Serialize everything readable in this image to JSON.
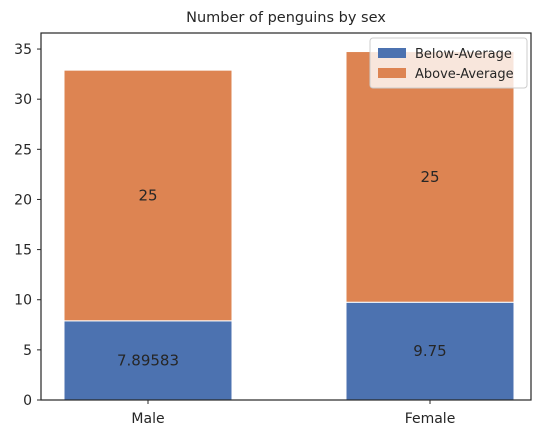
{
  "chart_data": {
    "type": "bar",
    "stacked": true,
    "title": "Number of penguins by sex",
    "xlabel": "",
    "ylabel": "",
    "categories": [
      "Male",
      "Female"
    ],
    "series": [
      {
        "name": "Below-Average",
        "values": [
          7.89583,
          9.75
        ],
        "labels": [
          "7.89583",
          "9.75"
        ],
        "color": "#4c72b0"
      },
      {
        "name": "Above-Average",
        "values": [
          25,
          25
        ],
        "labels": [
          "25",
          "25"
        ],
        "color": "#dd8452"
      }
    ],
    "ylim": [
      0,
      36.6
    ],
    "yticks": [
      0,
      5,
      10,
      15,
      20,
      25,
      30,
      35
    ],
    "grid": false,
    "legend": "top-right"
  }
}
